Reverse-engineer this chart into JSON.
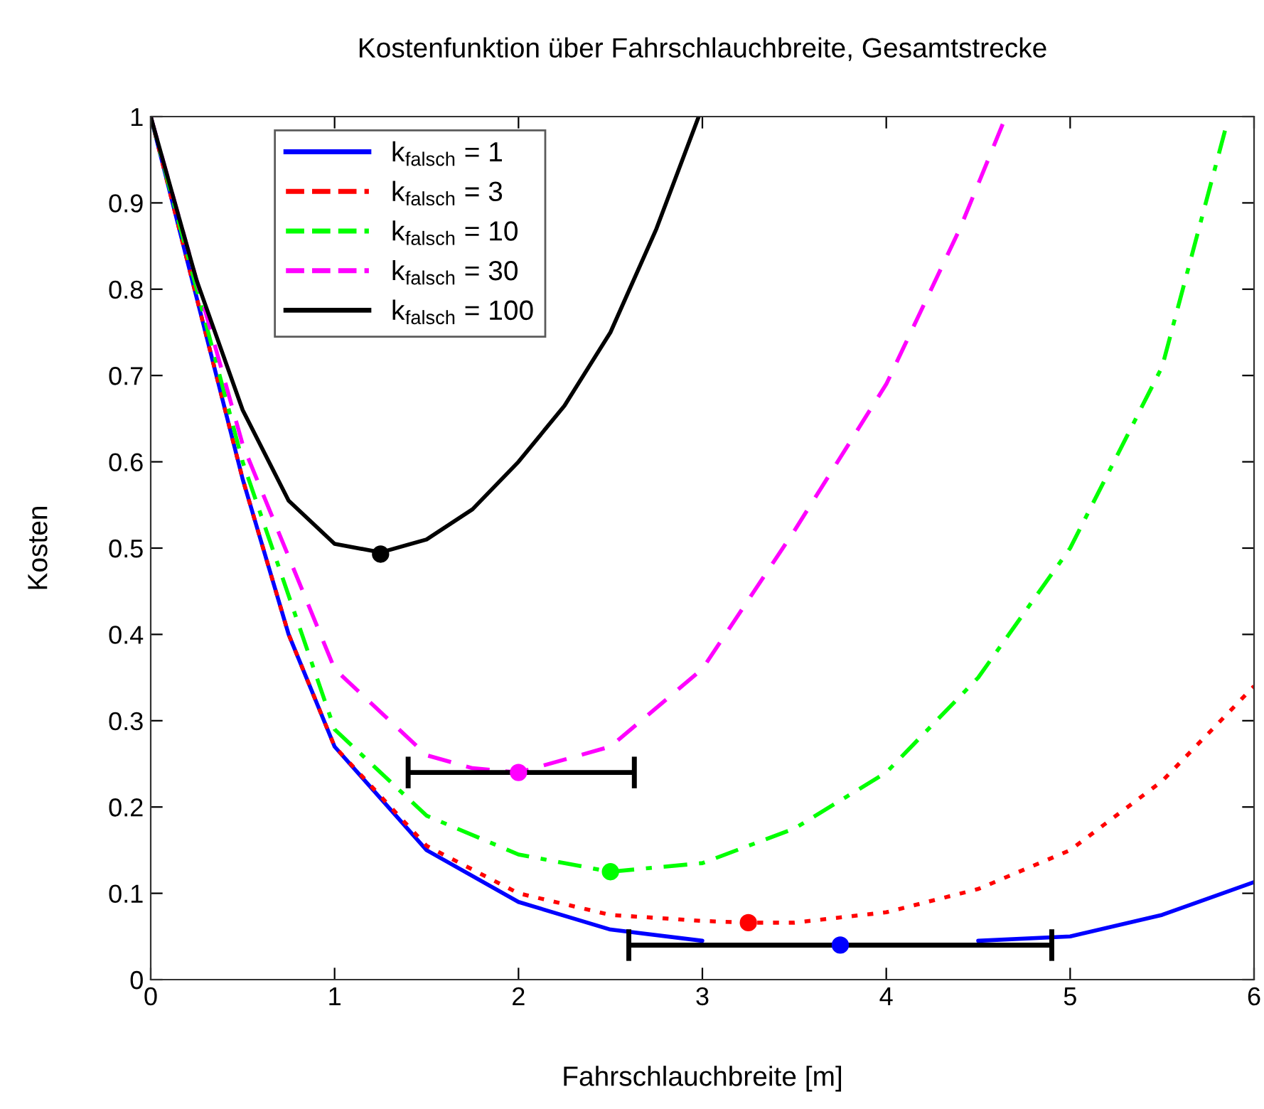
{
  "chart_data": {
    "type": "line",
    "title": "Kostenfunktion über Fahrschlauchbreite, Gesamtstrecke",
    "xlabel": "Fahrschlauchbreite [m]",
    "ylabel": "Kosten",
    "xlim": [
      0,
      6
    ],
    "ylim": [
      0,
      1
    ],
    "xticks": [
      0,
      1,
      2,
      3,
      4,
      5,
      6
    ],
    "yticks": [
      0,
      {
        "value": 0.1,
        "label": "0.1"
      },
      {
        "value": 0.2,
        "label": "0.2"
      },
      {
        "value": 0.3,
        "label": "0.3"
      },
      {
        "value": 0.4,
        "label": "0.4"
      },
      {
        "value": 0.5,
        "label": "0.5"
      },
      {
        "value": 0.6,
        "label": "0.6"
      },
      {
        "value": 0.7,
        "label": "0.7"
      },
      {
        "value": 0.8,
        "label": "0.8"
      },
      {
        "value": 0.9,
        "label": "0.9"
      },
      1
    ],
    "grid": false,
    "legend": "top left",
    "marker": "none",
    "series": [
      {
        "name": "k$_{falsch}$ = 1",
        "color": "#0000ff",
        "line_style": "solid",
        "x": [
          0,
          0.5,
          0.75,
          1,
          1.5,
          2,
          2.5,
          3,
          3.5,
          4,
          4.5,
          5,
          5.5,
          6
        ],
        "values": [
          1,
          0.58,
          0.4,
          0.27,
          0.15,
          0.09,
          0.058,
          0.045,
          null,
          null,
          0.045,
          0.05,
          0.075,
          0.113
        ]
      },
      {
        "name": "k$_{falsch}$ = 3",
        "color": "#ff0000",
        "line_style": "dotted",
        "x": [
          0,
          0.5,
          0.75,
          1,
          1.5,
          2,
          2.5,
          3,
          3.25,
          3.5,
          4,
          4.5,
          5,
          5.5,
          6
        ],
        "values": [
          1,
          0.58,
          0.4,
          0.27,
          0.155,
          0.1,
          0.075,
          0.068,
          0.066,
          0.066,
          0.078,
          0.105,
          0.15,
          0.23,
          0.34
        ]
      },
      {
        "name": "k$_{falsch}$ = 10",
        "color": "#00ff00",
        "line_style": "dashdot",
        "x": [
          0,
          0.5,
          1,
          1.5,
          2,
          2.5,
          3,
          3.5,
          4,
          4.5,
          5,
          5.5,
          5.85
        ],
        "values": [
          1,
          0.6,
          0.29,
          0.19,
          0.145,
          0.125,
          0.135,
          0.175,
          0.24,
          0.35,
          0.5,
          0.71,
          0.99
        ]
      },
      {
        "name": "k$_{falsch}$ = 30",
        "color": "#ff00ff",
        "line_style": "dashed",
        "x": [
          0,
          0.5,
          1,
          1.5,
          1.75,
          2,
          2.5,
          3,
          3.5,
          4,
          4.4,
          4.65
        ],
        "values": [
          1,
          0.62,
          0.36,
          0.26,
          0.245,
          0.24,
          0.27,
          0.36,
          0.52,
          0.69,
          0.87,
          1.0
        ]
      },
      {
        "name": "k$_{falsch}$ = 100",
        "color": "#000000",
        "line_style": "solid",
        "x": [
          0,
          0.25,
          0.5,
          0.75,
          1,
          1.25,
          1.5,
          1.75,
          2,
          2.25,
          2.5,
          2.75,
          2.98
        ],
        "values": [
          1,
          0.81,
          0.66,
          0.555,
          0.505,
          0.495,
          0.51,
          0.545,
          0.6,
          0.665,
          0.75,
          0.87,
          1.0
        ]
      },
      {
        "type": "scatter",
        "marker": "circle",
        "color": "#000000",
        "x": [
          1.25,
          2,
          2.5,
          3.25,
          3.75
        ],
        "values": [
          0.493,
          0.24,
          0.125,
          0.066,
          0.04
        ],
        "colors": [
          "#000000",
          "#ff00ff",
          "#00ff00",
          "#ff0000",
          "#0000ff"
        ],
        "xerrors": [
          null,
          [
            1.4,
            2.63
          ],
          null,
          null,
          [
            2.6,
            4.9
          ]
        ]
      }
    ]
  }
}
